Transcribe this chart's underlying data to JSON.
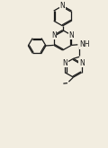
{
  "bg_color": "#f2ede0",
  "bond_color": "#1a1a1a",
  "line_width": 0.9,
  "font_size": 5.5,
  "xlim": [
    0,
    10
  ],
  "ylim": [
    0,
    14
  ]
}
